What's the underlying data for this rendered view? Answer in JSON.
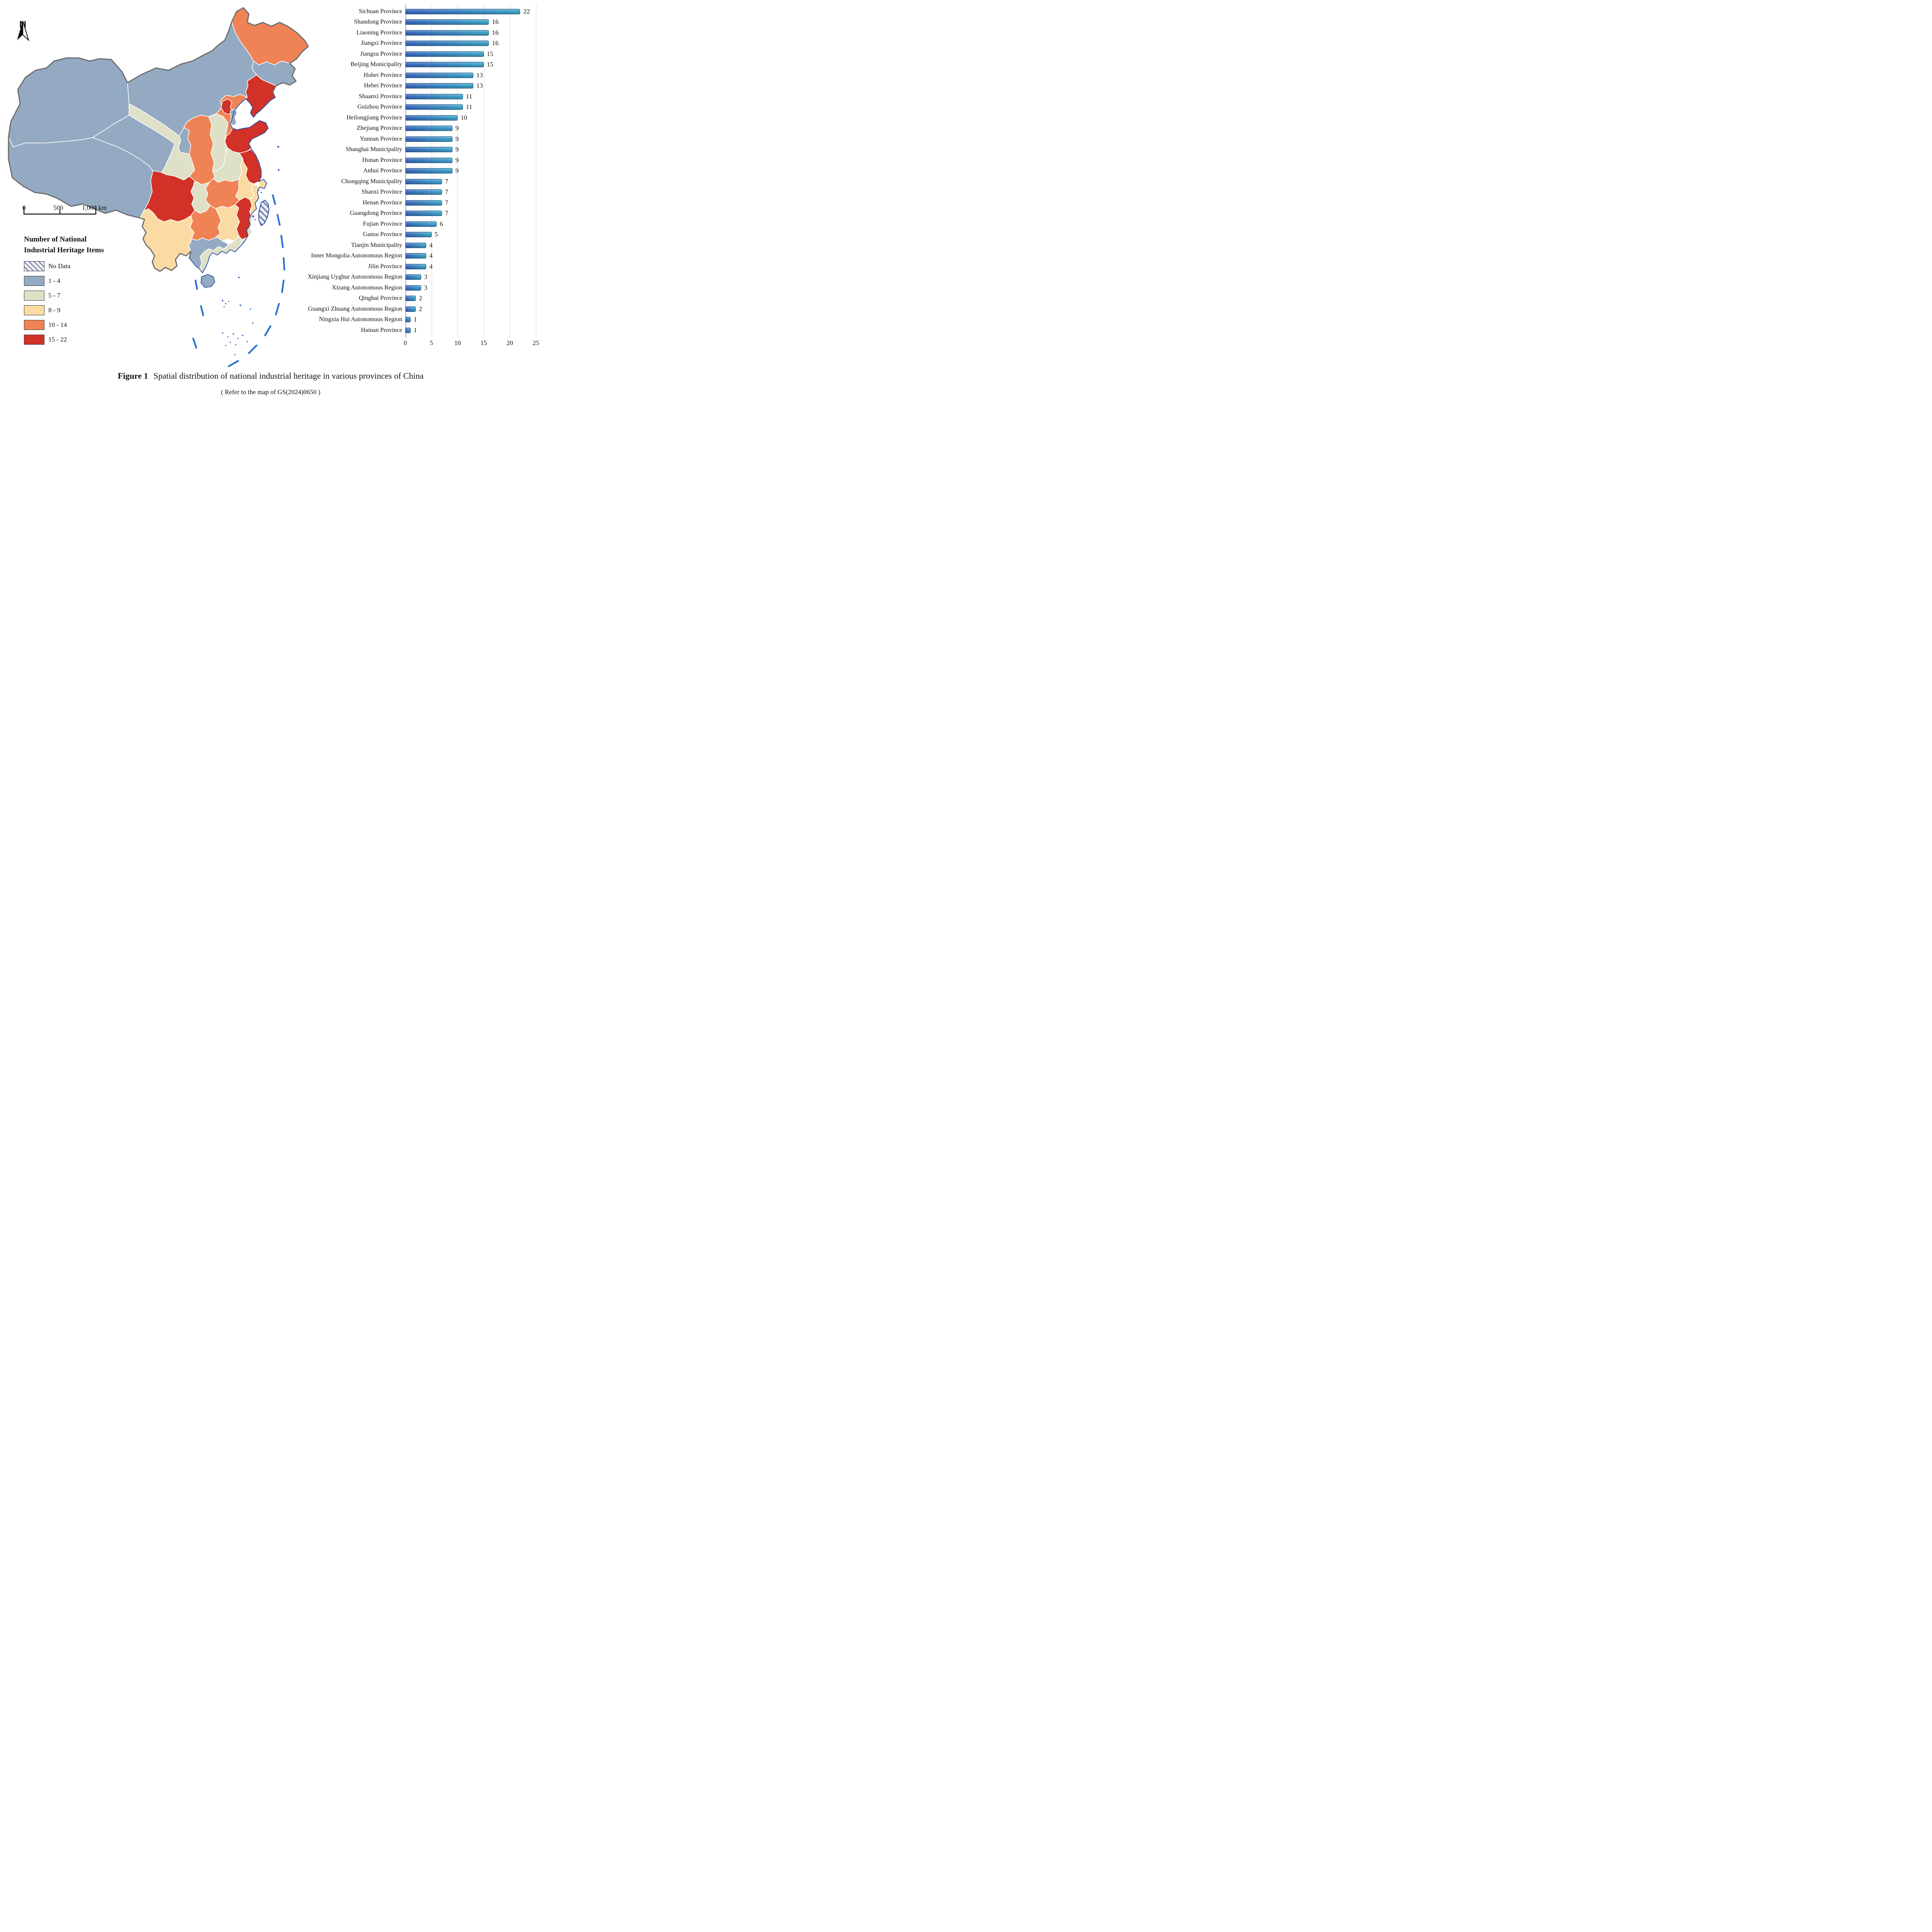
{
  "figure": {
    "caption_label": "Figure 1",
    "caption_text": "Spatial distribution of national industrial heritage in various provinces of China",
    "subcaption": "( Refer to the map of GS(2024)0650 )"
  },
  "map": {
    "north_label": "N",
    "scale_bar": {
      "labels": [
        "0",
        "500",
        "1,000 km"
      ]
    },
    "legend": {
      "title_line1": "Number of National",
      "title_line2": "Industrial Heritage Items",
      "items": [
        {
          "key": "no_data",
          "label": "No Data",
          "hatch": true,
          "hatch_color": "#7e8db9",
          "hatch_bg": "#f4f3f0"
        },
        {
          "key": "c1",
          "label": "1 - 4",
          "color": "#94aac3"
        },
        {
          "key": "c2",
          "label": "5 - 7",
          "color": "#dee1c7"
        },
        {
          "key": "c3",
          "label": "8 - 9",
          "color": "#fbdba3"
        },
        {
          "key": "c4",
          "label": "10 - 14",
          "color": "#ef8355"
        },
        {
          "key": "c5",
          "label": "15 - 22",
          "color": "#d13127"
        }
      ]
    },
    "regions": [
      {
        "name": "Xinjiang",
        "class": "c1"
      },
      {
        "name": "Xizang",
        "class": "c1"
      },
      {
        "name": "Qinghai",
        "class": "c1"
      },
      {
        "name": "Inner Mongolia",
        "class": "c1"
      },
      {
        "name": "Jilin",
        "class": "c1"
      },
      {
        "name": "Tianjin",
        "class": "c1"
      },
      {
        "name": "Ningxia",
        "class": "c1"
      },
      {
        "name": "Guangxi",
        "class": "c1"
      },
      {
        "name": "Hainan",
        "class": "c1"
      },
      {
        "name": "Gansu",
        "class": "c2"
      },
      {
        "name": "Shanxi",
        "class": "c2"
      },
      {
        "name": "Henan",
        "class": "c2"
      },
      {
        "name": "Chongqing",
        "class": "c2"
      },
      {
        "name": "Fujian",
        "class": "c2"
      },
      {
        "name": "Guangdong",
        "class": "c2"
      },
      {
        "name": "Yunnan",
        "class": "c3"
      },
      {
        "name": "Hunan",
        "class": "c3"
      },
      {
        "name": "Anhui",
        "class": "c3"
      },
      {
        "name": "Zhejiang",
        "class": "c3"
      },
      {
        "name": "Shanghai",
        "class": "c3"
      },
      {
        "name": "Heilongjiang",
        "class": "c4"
      },
      {
        "name": "Shaanxi",
        "class": "c4"
      },
      {
        "name": "Guizhou",
        "class": "c4"
      },
      {
        "name": "Hubei",
        "class": "c4"
      },
      {
        "name": "Hebei",
        "class": "c4"
      },
      {
        "name": "Sichuan",
        "class": "c5"
      },
      {
        "name": "Jiangxi",
        "class": "c5"
      },
      {
        "name": "Jiangsu",
        "class": "c5"
      },
      {
        "name": "Shandong",
        "class": "c5"
      },
      {
        "name": "Liaoning",
        "class": "c5"
      },
      {
        "name": "Beijing",
        "class": "c5"
      },
      {
        "name": "Taiwan",
        "class": "no_data"
      }
    ]
  },
  "chart_data": {
    "type": "bar",
    "orientation": "horizontal",
    "title": "",
    "xlabel": "",
    "ylabel": "",
    "xlim": [
      0,
      25
    ],
    "xticks": [
      "0",
      "5",
      "10",
      "15",
      "20",
      "25"
    ],
    "grid": "vertical",
    "legend_position": "none",
    "bar_gradient": [
      "#3c68be",
      "#3fa8c9"
    ],
    "categories": [
      "Sichuan Province",
      "Shandong Province",
      "Liaoning Province",
      "Jiangxi Province",
      "Jiangsu Province",
      "Beijing Municipality",
      "Hubei Province",
      "Hebei Province",
      "Shaanxi Province",
      "Guizhou Province",
      "Heilongjiang Province",
      "Zhejiang Province",
      "Yunnan Province",
      "Shanghai Municipality",
      "Hunan Province",
      "Anhui Province",
      "Chongqing Municipality",
      "Shanxi Province",
      "Henan Province",
      "Guangdong Province",
      "Fujian Province",
      "Gansu Province",
      "Tianjin Municipality",
      "Inner Mongolia Autonomous Region",
      "Jilin Province",
      "Xinjiang Uyghur Autonomous Region",
      "Xizang Autonomous Region",
      "Qinghai Province",
      "Guangxi Zhuang Autonomous Region",
      "Ningxia Hui Autonomous Region",
      "Hainan Province"
    ],
    "values": [
      22,
      16,
      16,
      16,
      15,
      15,
      13,
      13,
      11,
      11,
      10,
      9,
      9,
      9,
      9,
      9,
      7,
      7,
      7,
      7,
      6,
      5,
      4,
      4,
      4,
      3,
      3,
      2,
      2,
      1,
      1
    ]
  }
}
